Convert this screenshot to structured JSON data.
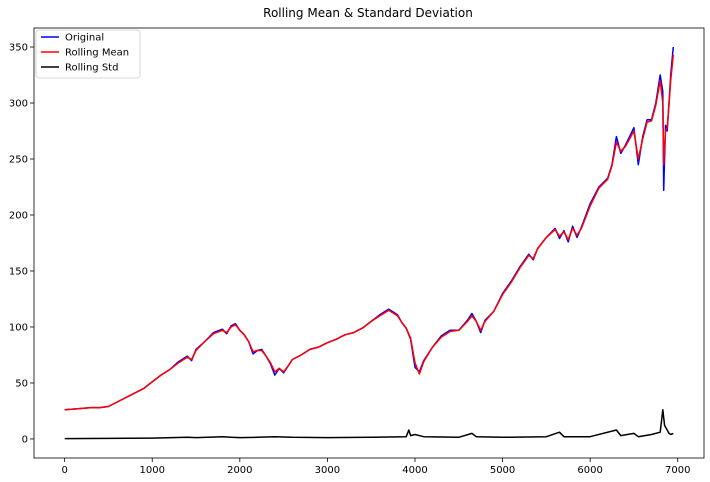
{
  "chart_data": {
    "type": "line",
    "title": "Rolling Mean & Standard Deviation",
    "xlabel": "",
    "ylabel": "",
    "xlim": [
      -350,
      7300
    ],
    "ylim": [
      -17,
      367
    ],
    "xticks": [
      0,
      1000,
      2000,
      3000,
      4000,
      5000,
      6000,
      7000
    ],
    "yticks": [
      0,
      50,
      100,
      150,
      200,
      250,
      300,
      350
    ],
    "grid": false,
    "legend_position": "top-left",
    "series": [
      {
        "name": "Original",
        "color": "#0000ff",
        "points": [
          [
            0,
            26
          ],
          [
            150,
            27
          ],
          [
            300,
            28
          ],
          [
            400,
            28
          ],
          [
            500,
            29
          ],
          [
            600,
            33
          ],
          [
            700,
            37
          ],
          [
            800,
            41
          ],
          [
            900,
            45
          ],
          [
            1000,
            51
          ],
          [
            1100,
            57
          ],
          [
            1200,
            62
          ],
          [
            1300,
            69
          ],
          [
            1400,
            74
          ],
          [
            1450,
            70
          ],
          [
            1500,
            80
          ],
          [
            1600,
            87
          ],
          [
            1700,
            95
          ],
          [
            1800,
            98
          ],
          [
            1850,
            94
          ],
          [
            1900,
            101
          ],
          [
            1950,
            103
          ],
          [
            2000,
            97
          ],
          [
            2050,
            93
          ],
          [
            2100,
            87
          ],
          [
            2150,
            76
          ],
          [
            2200,
            79
          ],
          [
            2250,
            80
          ],
          [
            2300,
            74
          ],
          [
            2350,
            67
          ],
          [
            2400,
            57
          ],
          [
            2450,
            63
          ],
          [
            2500,
            59
          ],
          [
            2550,
            65
          ],
          [
            2600,
            71
          ],
          [
            2700,
            75
          ],
          [
            2800,
            80
          ],
          [
            2900,
            82
          ],
          [
            3000,
            86
          ],
          [
            3100,
            89
          ],
          [
            3200,
            93
          ],
          [
            3300,
            95
          ],
          [
            3400,
            99
          ],
          [
            3500,
            105
          ],
          [
            3600,
            111
          ],
          [
            3700,
            116
          ],
          [
            3800,
            111
          ],
          [
            3850,
            104
          ],
          [
            3900,
            99
          ],
          [
            3950,
            89
          ],
          [
            4000,
            64
          ],
          [
            4050,
            60
          ],
          [
            4100,
            70
          ],
          [
            4200,
            82
          ],
          [
            4300,
            92
          ],
          [
            4400,
            97
          ],
          [
            4500,
            97
          ],
          [
            4600,
            106
          ],
          [
            4650,
            112
          ],
          [
            4700,
            105
          ],
          [
            4750,
            95
          ],
          [
            4800,
            106
          ],
          [
            4900,
            114
          ],
          [
            5000,
            130
          ],
          [
            5100,
            141
          ],
          [
            5200,
            154
          ],
          [
            5300,
            165
          ],
          [
            5350,
            160
          ],
          [
            5400,
            170
          ],
          [
            5500,
            180
          ],
          [
            5600,
            188
          ],
          [
            5650,
            179
          ],
          [
            5700,
            186
          ],
          [
            5750,
            176
          ],
          [
            5800,
            190
          ],
          [
            5850,
            180
          ],
          [
            5900,
            189
          ],
          [
            6000,
            210
          ],
          [
            6100,
            225
          ],
          [
            6200,
            233
          ],
          [
            6250,
            245
          ],
          [
            6300,
            270
          ],
          [
            6350,
            255
          ],
          [
            6400,
            262
          ],
          [
            6450,
            270
          ],
          [
            6500,
            278
          ],
          [
            6550,
            245
          ],
          [
            6600,
            270
          ],
          [
            6650,
            285
          ],
          [
            6700,
            285
          ],
          [
            6750,
            300
          ],
          [
            6800,
            325
          ],
          [
            6830,
            310
          ],
          [
            6840,
            222
          ],
          [
            6860,
            280
          ],
          [
            6880,
            275
          ],
          [
            6900,
            300
          ],
          [
            6920,
            325
          ],
          [
            6950,
            350
          ]
        ]
      },
      {
        "name": "Rolling Mean",
        "color": "#ff0000",
        "points": [
          [
            0,
            26
          ],
          [
            150,
            27
          ],
          [
            300,
            28
          ],
          [
            400,
            28
          ],
          [
            500,
            29
          ],
          [
            600,
            33
          ],
          [
            700,
            37
          ],
          [
            800,
            41
          ],
          [
            900,
            45
          ],
          [
            1000,
            51
          ],
          [
            1100,
            57
          ],
          [
            1200,
            62
          ],
          [
            1300,
            68
          ],
          [
            1400,
            73
          ],
          [
            1450,
            71
          ],
          [
            1500,
            79
          ],
          [
            1600,
            87
          ],
          [
            1700,
            94
          ],
          [
            1800,
            97
          ],
          [
            1850,
            95
          ],
          [
            1900,
            100
          ],
          [
            1950,
            102
          ],
          [
            2000,
            97
          ],
          [
            2050,
            93
          ],
          [
            2100,
            87
          ],
          [
            2150,
            78
          ],
          [
            2200,
            79
          ],
          [
            2250,
            79
          ],
          [
            2300,
            74
          ],
          [
            2350,
            68
          ],
          [
            2400,
            60
          ],
          [
            2450,
            63
          ],
          [
            2500,
            60
          ],
          [
            2550,
            65
          ],
          [
            2600,
            71
          ],
          [
            2700,
            75
          ],
          [
            2800,
            80
          ],
          [
            2900,
            82
          ],
          [
            3000,
            86
          ],
          [
            3100,
            89
          ],
          [
            3200,
            93
          ],
          [
            3300,
            95
          ],
          [
            3400,
            99
          ],
          [
            3500,
            105
          ],
          [
            3600,
            110
          ],
          [
            3700,
            115
          ],
          [
            3800,
            110
          ],
          [
            3850,
            104
          ],
          [
            3900,
            99
          ],
          [
            3950,
            90
          ],
          [
            4000,
            68
          ],
          [
            4050,
            58
          ],
          [
            4100,
            69
          ],
          [
            4200,
            82
          ],
          [
            4300,
            91
          ],
          [
            4400,
            96
          ],
          [
            4500,
            97
          ],
          [
            4600,
            105
          ],
          [
            4650,
            110
          ],
          [
            4700,
            105
          ],
          [
            4750,
            97
          ],
          [
            4800,
            105
          ],
          [
            4900,
            114
          ],
          [
            5000,
            129
          ],
          [
            5100,
            140
          ],
          [
            5200,
            153
          ],
          [
            5300,
            164
          ],
          [
            5350,
            161
          ],
          [
            5400,
            170
          ],
          [
            5500,
            180
          ],
          [
            5600,
            187
          ],
          [
            5650,
            181
          ],
          [
            5700,
            185
          ],
          [
            5750,
            178
          ],
          [
            5800,
            188
          ],
          [
            5850,
            182
          ],
          [
            5900,
            188
          ],
          [
            6000,
            208
          ],
          [
            6100,
            224
          ],
          [
            6200,
            232
          ],
          [
            6250,
            244
          ],
          [
            6300,
            265
          ],
          [
            6350,
            257
          ],
          [
            6400,
            261
          ],
          [
            6450,
            268
          ],
          [
            6500,
            275
          ],
          [
            6550,
            250
          ],
          [
            6600,
            268
          ],
          [
            6650,
            283
          ],
          [
            6700,
            284
          ],
          [
            6750,
            298
          ],
          [
            6800,
            320
          ],
          [
            6830,
            300
          ],
          [
            6840,
            245
          ],
          [
            6860,
            275
          ],
          [
            6880,
            278
          ],
          [
            6900,
            298
          ],
          [
            6920,
            320
          ],
          [
            6950,
            343
          ]
        ]
      },
      {
        "name": "Rolling Std",
        "color": "#000000",
        "points": [
          [
            0,
            0.3
          ],
          [
            500,
            0.5
          ],
          [
            1000,
            0.8
          ],
          [
            1400,
            1.5
          ],
          [
            1500,
            1.2
          ],
          [
            1800,
            2
          ],
          [
            1900,
            1.5
          ],
          [
            2000,
            1.2
          ],
          [
            2200,
            1.5
          ],
          [
            2400,
            2
          ],
          [
            2600,
            1.5
          ],
          [
            3000,
            1.2
          ],
          [
            3500,
            1.5
          ],
          [
            3900,
            2
          ],
          [
            3930,
            8
          ],
          [
            3950,
            3
          ],
          [
            4000,
            4
          ],
          [
            4100,
            2
          ],
          [
            4500,
            1.5
          ],
          [
            4650,
            5
          ],
          [
            4700,
            2
          ],
          [
            5000,
            1.5
          ],
          [
            5500,
            2
          ],
          [
            5650,
            6
          ],
          [
            5700,
            2
          ],
          [
            6000,
            2
          ],
          [
            6300,
            8
          ],
          [
            6350,
            3
          ],
          [
            6500,
            5
          ],
          [
            6550,
            2
          ],
          [
            6700,
            4
          ],
          [
            6800,
            6
          ],
          [
            6830,
            26
          ],
          [
            6850,
            12
          ],
          [
            6880,
            8
          ],
          [
            6900,
            5
          ],
          [
            6920,
            4
          ],
          [
            6950,
            5
          ]
        ]
      }
    ]
  }
}
